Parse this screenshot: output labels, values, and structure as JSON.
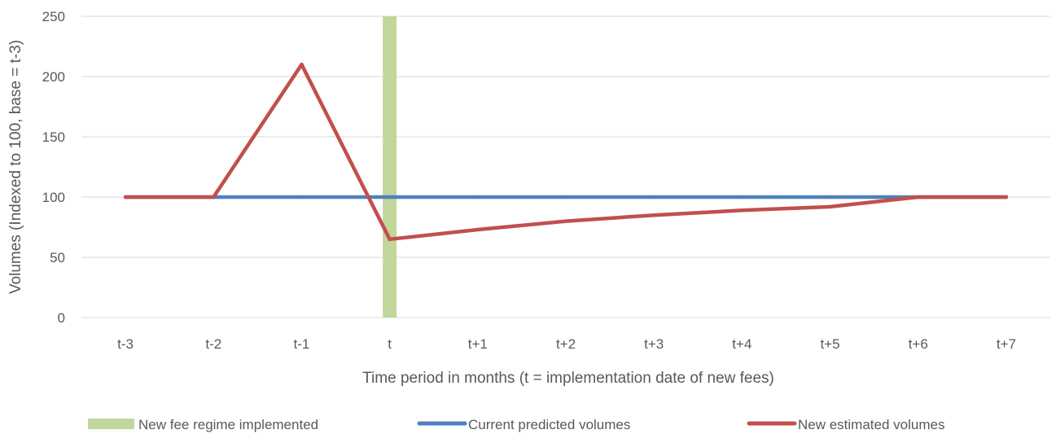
{
  "chart_data": {
    "type": "line",
    "title": "",
    "xlabel": "Time period in months (t = implementation date of new fees)",
    "ylabel": "Volumes (Indexed to 100, base = t-3)",
    "categories": [
      "t-3",
      "t-2",
      "t-1",
      "t",
      "t+1",
      "t+2",
      "t+3",
      "t+4",
      "t+5",
      "t+6",
      "t+7"
    ],
    "ylim": [
      0,
      250
    ],
    "yticks": [
      0,
      50,
      100,
      150,
      200,
      250
    ],
    "grid": true,
    "legend_position": "bottom",
    "marker": {
      "name": "New fee regime implemented",
      "category": "t",
      "color": "#c3d69b"
    },
    "series": [
      {
        "name": "Current predicted volumes",
        "color": "#4f81bd",
        "values": [
          100,
          100,
          100,
          100,
          100,
          100,
          100,
          100,
          100,
          100,
          100
        ]
      },
      {
        "name": "New estimated  volumes",
        "color": "#c0504d",
        "values": [
          100,
          100,
          210,
          65,
          73,
          80,
          85,
          89,
          92,
          100,
          100
        ]
      }
    ]
  }
}
